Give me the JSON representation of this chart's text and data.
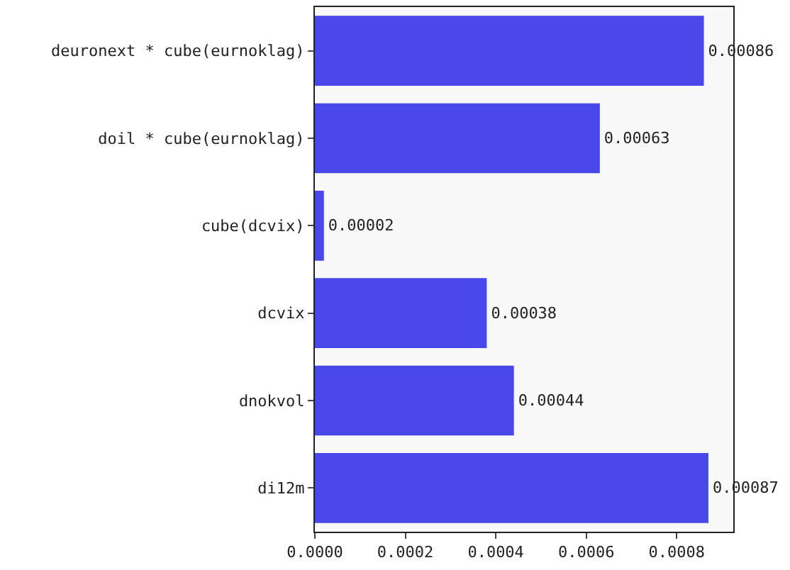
{
  "chart_data": {
    "type": "bar",
    "orientation": "horizontal",
    "categories": [
      "deuronext * cube(eurnoklag)",
      "doil * cube(eurnoklag)",
      "cube(dcvix)",
      "dcvix",
      "dnokvol",
      "di12m"
    ],
    "values": [
      0.00086,
      0.00063,
      2e-05,
      0.00038,
      0.00044,
      0.00087
    ],
    "value_labels": [
      "0.00086",
      "0.00063",
      "0.00002",
      "0.00038",
      "0.00044",
      "0.00087"
    ],
    "color": "#4848e8",
    "grid": false,
    "legend": false,
    "xlim": [
      0,
      0.000925
    ],
    "xticks": [
      {
        "value": 0,
        "label": "0.0000"
      },
      {
        "value": 0.0002,
        "label": "0.0002"
      },
      {
        "value": 0.0004,
        "label": "0.0004"
      },
      {
        "value": 0.0006,
        "label": "0.0006"
      },
      {
        "value": 0.0008,
        "label": "0.0008"
      }
    ]
  }
}
